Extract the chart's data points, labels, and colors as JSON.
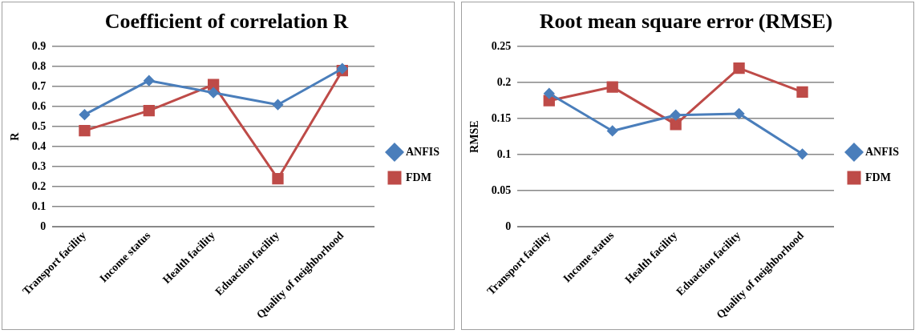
{
  "chart_data": [
    {
      "type": "line",
      "title": "Coefficient of correlation R",
      "ylabel": "R",
      "categories": [
        "Transport facility",
        "Income status",
        "Health facility",
        "Eduaction facility",
        "Quality of neighborhood"
      ],
      "series": [
        {
          "name": "ANFIS",
          "color": "#4a7ebb",
          "marker": "diamond",
          "values": [
            0.56,
            0.73,
            0.67,
            0.61,
            0.79
          ]
        },
        {
          "name": "FDM",
          "color": "#be4b48",
          "marker": "square",
          "values": [
            0.48,
            0.58,
            0.71,
            0.24,
            0.78
          ]
        }
      ],
      "ylim": [
        0,
        0.9
      ],
      "yticks": [
        0,
        0.1,
        0.2,
        0.3,
        0.4,
        0.5,
        0.6,
        0.7,
        0.8,
        0.9
      ],
      "grid": "y",
      "legend": "right"
    },
    {
      "type": "line",
      "title": "Root mean square error (RMSE)",
      "ylabel": "RMSE",
      "categories": [
        "Transport facility",
        "Income status",
        "Health facility",
        "Eduaction facility",
        "Quality of neighborhood"
      ],
      "series": [
        {
          "name": "ANFIS",
          "color": "#4a7ebb",
          "marker": "diamond",
          "values": [
            0.185,
            0.133,
            0.155,
            0.157,
            0.101
          ]
        },
        {
          "name": "FDM",
          "color": "#be4b48",
          "marker": "square",
          "values": [
            0.175,
            0.194,
            0.142,
            0.22,
            0.187
          ]
        }
      ],
      "ylim": [
        0,
        0.25
      ],
      "yticks": [
        0,
        0.05,
        0.1,
        0.15,
        0.2,
        0.25
      ],
      "grid": "y",
      "legend": "right"
    }
  ]
}
